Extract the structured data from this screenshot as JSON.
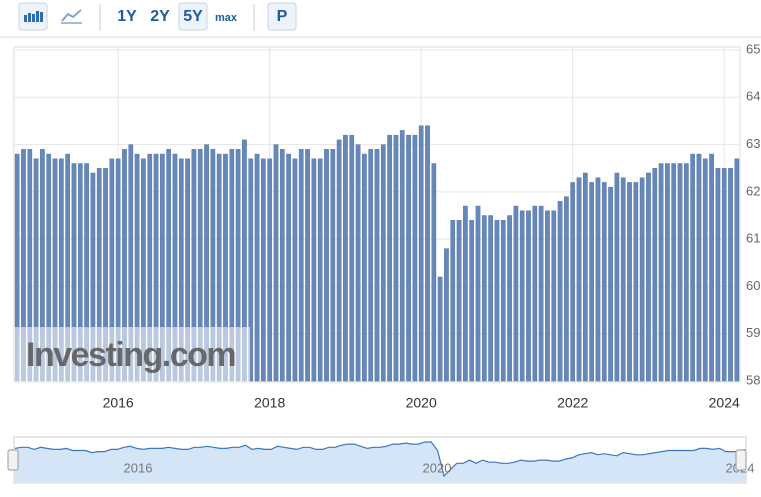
{
  "toolbar": {
    "buttons": [
      "1Y",
      "2Y",
      "5Y",
      "max",
      "P"
    ]
  },
  "chart_data": {
    "type": "bar",
    "watermark": "Investing.com",
    "color": "#6688b8",
    "categories": [
      null,
      null,
      null,
      null,
      null,
      null,
      null,
      null,
      null,
      null,
      null,
      null,
      null,
      null,
      null,
      null,
      "2016",
      null,
      null,
      null,
      null,
      null,
      null,
      null,
      null,
      null,
      null,
      null,
      null,
      null,
      null,
      null,
      null,
      null,
      null,
      null,
      null,
      null,
      null,
      null,
      "2018",
      null,
      null,
      null,
      null,
      null,
      null,
      null,
      null,
      null,
      null,
      null,
      null,
      null,
      null,
      null,
      null,
      null,
      null,
      null,
      null,
      null,
      null,
      null,
      "2020",
      null,
      null,
      null,
      null,
      null,
      null,
      null,
      null,
      null,
      null,
      null,
      null,
      null,
      null,
      null,
      null,
      null,
      null,
      null,
      null,
      null,
      null,
      null,
      "2022",
      null,
      null,
      null,
      null,
      null,
      null,
      null,
      null,
      null,
      null,
      null,
      null,
      null,
      null,
      null,
      null,
      null,
      null,
      null,
      null,
      null,
      null,
      null,
      "2024",
      null,
      null
    ],
    "values": [
      62.8,
      62.9,
      62.9,
      62.7,
      62.9,
      62.8,
      62.7,
      62.7,
      62.8,
      62.6,
      62.6,
      62.6,
      62.4,
      62.5,
      62.5,
      62.7,
      62.7,
      62.9,
      63.0,
      62.8,
      62.7,
      62.8,
      62.8,
      62.8,
      62.9,
      62.8,
      62.7,
      62.7,
      62.9,
      62.9,
      63.0,
      62.9,
      62.8,
      62.8,
      62.9,
      62.9,
      63.1,
      62.7,
      62.8,
      62.7,
      62.7,
      63.0,
      62.9,
      62.8,
      62.7,
      62.9,
      62.9,
      62.7,
      62.7,
      62.9,
      62.9,
      63.1,
      63.2,
      63.2,
      63.0,
      62.8,
      62.9,
      62.9,
      63.0,
      63.2,
      63.2,
      63.3,
      63.2,
      63.2,
      63.4,
      63.4,
      62.6,
      60.2,
      60.8,
      61.4,
      61.4,
      61.7,
      61.4,
      61.7,
      61.5,
      61.5,
      61.4,
      61.4,
      61.5,
      61.7,
      61.6,
      61.6,
      61.7,
      61.7,
      61.6,
      61.6,
      61.8,
      61.9,
      62.2,
      62.3,
      62.4,
      62.2,
      62.3,
      62.2,
      62.1,
      62.4,
      62.3,
      62.2,
      62.2,
      62.3,
      62.4,
      62.5,
      62.6,
      62.6,
      62.6,
      62.6,
      62.6,
      62.8,
      62.8,
      62.7,
      62.8,
      62.5,
      62.5,
      62.5,
      62.7
    ],
    "ylim": [
      58,
      65
    ],
    "yticks": [
      58,
      59,
      60,
      61,
      62,
      63,
      64,
      65
    ],
    "grid": true,
    "navigator": {
      "labels": [
        "2016",
        "2020",
        "2024"
      ]
    }
  }
}
